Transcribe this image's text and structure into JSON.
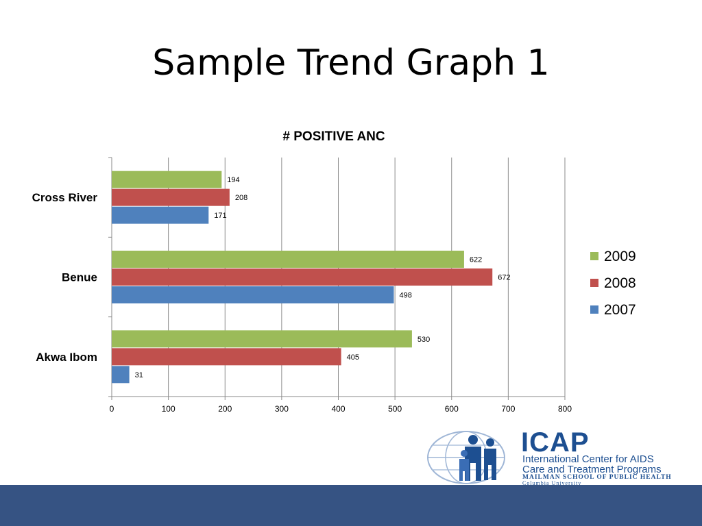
{
  "slide": {
    "title": "Sample Trend Graph 1",
    "footer_color": "#365383"
  },
  "logo": {
    "acronym": "ICAP",
    "line1": "International Center for AIDS",
    "line2": "Care and Treatment Programs",
    "line3": "MAILMAN SCHOOL OF PUBLIC HEALTH",
    "line4": "Columbia University",
    "color": "#1d4f91"
  },
  "chart_data": {
    "type": "bar",
    "orientation": "horizontal",
    "title": "# POSITIVE ANC",
    "categories": [
      "Cross River",
      "Benue",
      "Akwa Ibom"
    ],
    "series": [
      {
        "name": "2009",
        "color": "#9bbb59",
        "values": [
          194,
          622,
          530
        ]
      },
      {
        "name": "2008",
        "color": "#c0504d",
        "values": [
          208,
          672,
          405
        ]
      },
      {
        "name": "2007",
        "color": "#4f81bd",
        "values": [
          171,
          498,
          31
        ]
      }
    ],
    "xlim": [
      0,
      800
    ],
    "xticks": [
      "0",
      "100",
      "200",
      "300",
      "400",
      "500",
      "600",
      "700",
      "800"
    ],
    "grid": true,
    "legend": "right"
  }
}
